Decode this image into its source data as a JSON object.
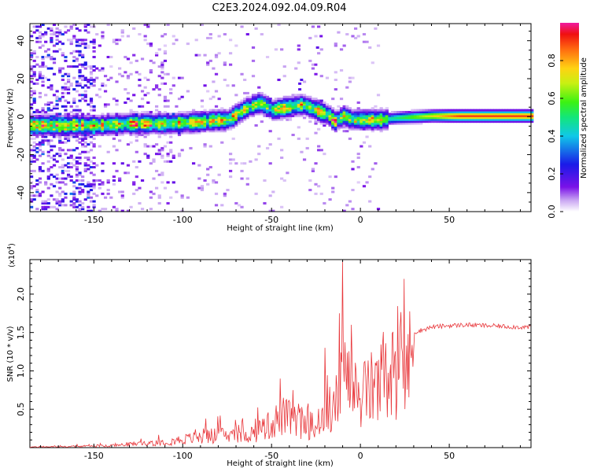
{
  "title": "C2E3.2024.092.04.09.R04",
  "colors": {
    "trace": "#e8363a",
    "frame": "#000000"
  },
  "chart_data": [
    {
      "type": "heatmap",
      "xlabel": "Height of straight line (km)",
      "ylabel": "Frequency (Hz)",
      "xlim": [
        -186,
        96
      ],
      "ylim": [
        -50,
        49
      ],
      "xticks": [
        -150,
        -100,
        -50,
        0,
        50
      ],
      "yticks": [
        -40,
        -20,
        0,
        20,
        40
      ],
      "grid": false,
      "ridge": {
        "x": [
          -186,
          -170,
          -150,
          -130,
          -110,
          -90,
          -75,
          -65,
          -57,
          -50,
          -40,
          -33,
          -25,
          -18,
          -15,
          -10,
          -5,
          0,
          10,
          20,
          40,
          60,
          80,
          96
        ],
        "y": [
          -5,
          -5,
          -5,
          -4,
          -4,
          -3,
          -2,
          4,
          7,
          3,
          5,
          6,
          3,
          0,
          -3,
          0,
          -2,
          -2,
          -2,
          -1,
          0,
          0,
          0,
          0
        ]
      },
      "colorbar": {
        "label": "Normalized spectral amplitude",
        "range": [
          0,
          1
        ],
        "ticks": [
          "0.0",
          "0.2",
          "0.4",
          "0.6",
          "0.8"
        ],
        "tick_values": [
          0,
          0.2,
          0.4,
          0.6,
          0.8
        ]
      }
    },
    {
      "type": "line",
      "xlabel": "Height of straight line (km)",
      "ylabel": "SNR (10 * v/v)",
      "multiplier": "(x10",
      "multiplier_exp": "4",
      "multiplier_close": ")",
      "xlim": [
        -186,
        96
      ],
      "ylim": [
        0,
        2.45
      ],
      "xticks": [
        -150,
        -100,
        -50,
        0,
        50
      ],
      "yticks": [
        "0.5",
        "1.0",
        "1.5",
        "2.0"
      ],
      "ytick_values": [
        0.5,
        1.0,
        1.5,
        2.0
      ],
      "grid": false,
      "series": [
        {
          "x": [
            -186,
            -160,
            -140,
            -130,
            -120,
            -110,
            -100,
            -90,
            -80,
            -70,
            -60,
            -50,
            -45,
            -40,
            -35,
            -30,
            -25,
            -20,
            -15,
            -12,
            -10,
            -5,
            0,
            5,
            10,
            15,
            20,
            25,
            30,
            40,
            50,
            60,
            70,
            80,
            90,
            96
          ],
          "y": [
            0.01,
            0.02,
            0.03,
            0.06,
            0.08,
            0.1,
            0.14,
            0.18,
            0.22,
            0.2,
            0.25,
            0.4,
            0.55,
            0.5,
            0.45,
            0.4,
            0.35,
            0.6,
            0.7,
            0.9,
            1.2,
            1.0,
            0.9,
            1.0,
            1.05,
            1.2,
            1.35,
            1.45,
            1.5,
            1.57,
            1.59,
            1.6,
            1.59,
            1.58,
            1.57,
            1.57
          ],
          "spikes": [
            {
              "x": -10,
              "y": 2.42
            },
            {
              "x": -12,
              "y": 1.75
            },
            {
              "x": -5,
              "y": 1.6
            },
            {
              "x": -20,
              "y": 1.3
            },
            {
              "x": -45,
              "y": 0.9
            },
            {
              "x": -38,
              "y": 0.75
            }
          ]
        }
      ]
    }
  ]
}
